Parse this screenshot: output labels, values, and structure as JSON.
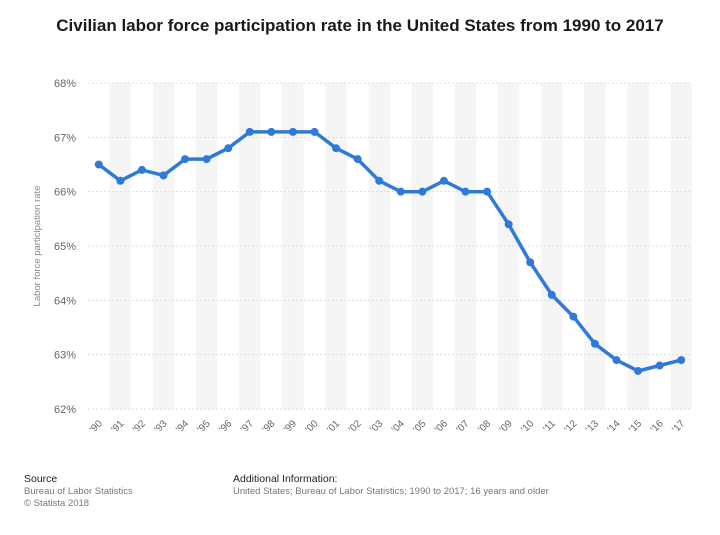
{
  "chart_data": {
    "type": "line",
    "title": "Civilian labor force participation rate in the United States from 1990 to 2017",
    "ylabel": "Labor force participation rate",
    "xlabel": "",
    "categories": [
      "'90",
      "'91",
      "'92",
      "'93",
      "'94",
      "'95",
      "'96",
      "'97",
      "'98",
      "'99",
      "'00",
      "'01",
      "'02",
      "'03",
      "'04",
      "'05",
      "'06",
      "'07",
      "'08",
      "'09",
      "'10",
      "'11",
      "'12",
      "'13",
      "'14",
      "'15",
      "'16",
      "'17"
    ],
    "series": [
      {
        "values": [
          66.5,
          66.2,
          66.4,
          66.3,
          66.6,
          66.6,
          66.8,
          67.1,
          67.1,
          67.1,
          67.1,
          66.8,
          66.6,
          66.2,
          66.0,
          66.0,
          66.2,
          66.0,
          66.0,
          65.4,
          64.7,
          64.1,
          63.7,
          63.2,
          62.9,
          62.7,
          62.8,
          62.9
        ]
      }
    ],
    "ylim": [
      62,
      68
    ],
    "yticks": [
      "62%",
      "63%",
      "64%",
      "65%",
      "66%",
      "67%",
      "68%"
    ],
    "grid": true,
    "colors": {
      "line": "#2f79d8",
      "band": "#f5f5f5",
      "grid": "#dddddd"
    }
  },
  "footer": {
    "source_head": "Source",
    "source_line1": "Bureau of Labor Statistics",
    "source_line2": "© Statista 2018",
    "info_head": "Additional Information:",
    "info_line1": "United States; Bureau of Labor Statistics; 1990 to 2017; 16 years and older"
  }
}
